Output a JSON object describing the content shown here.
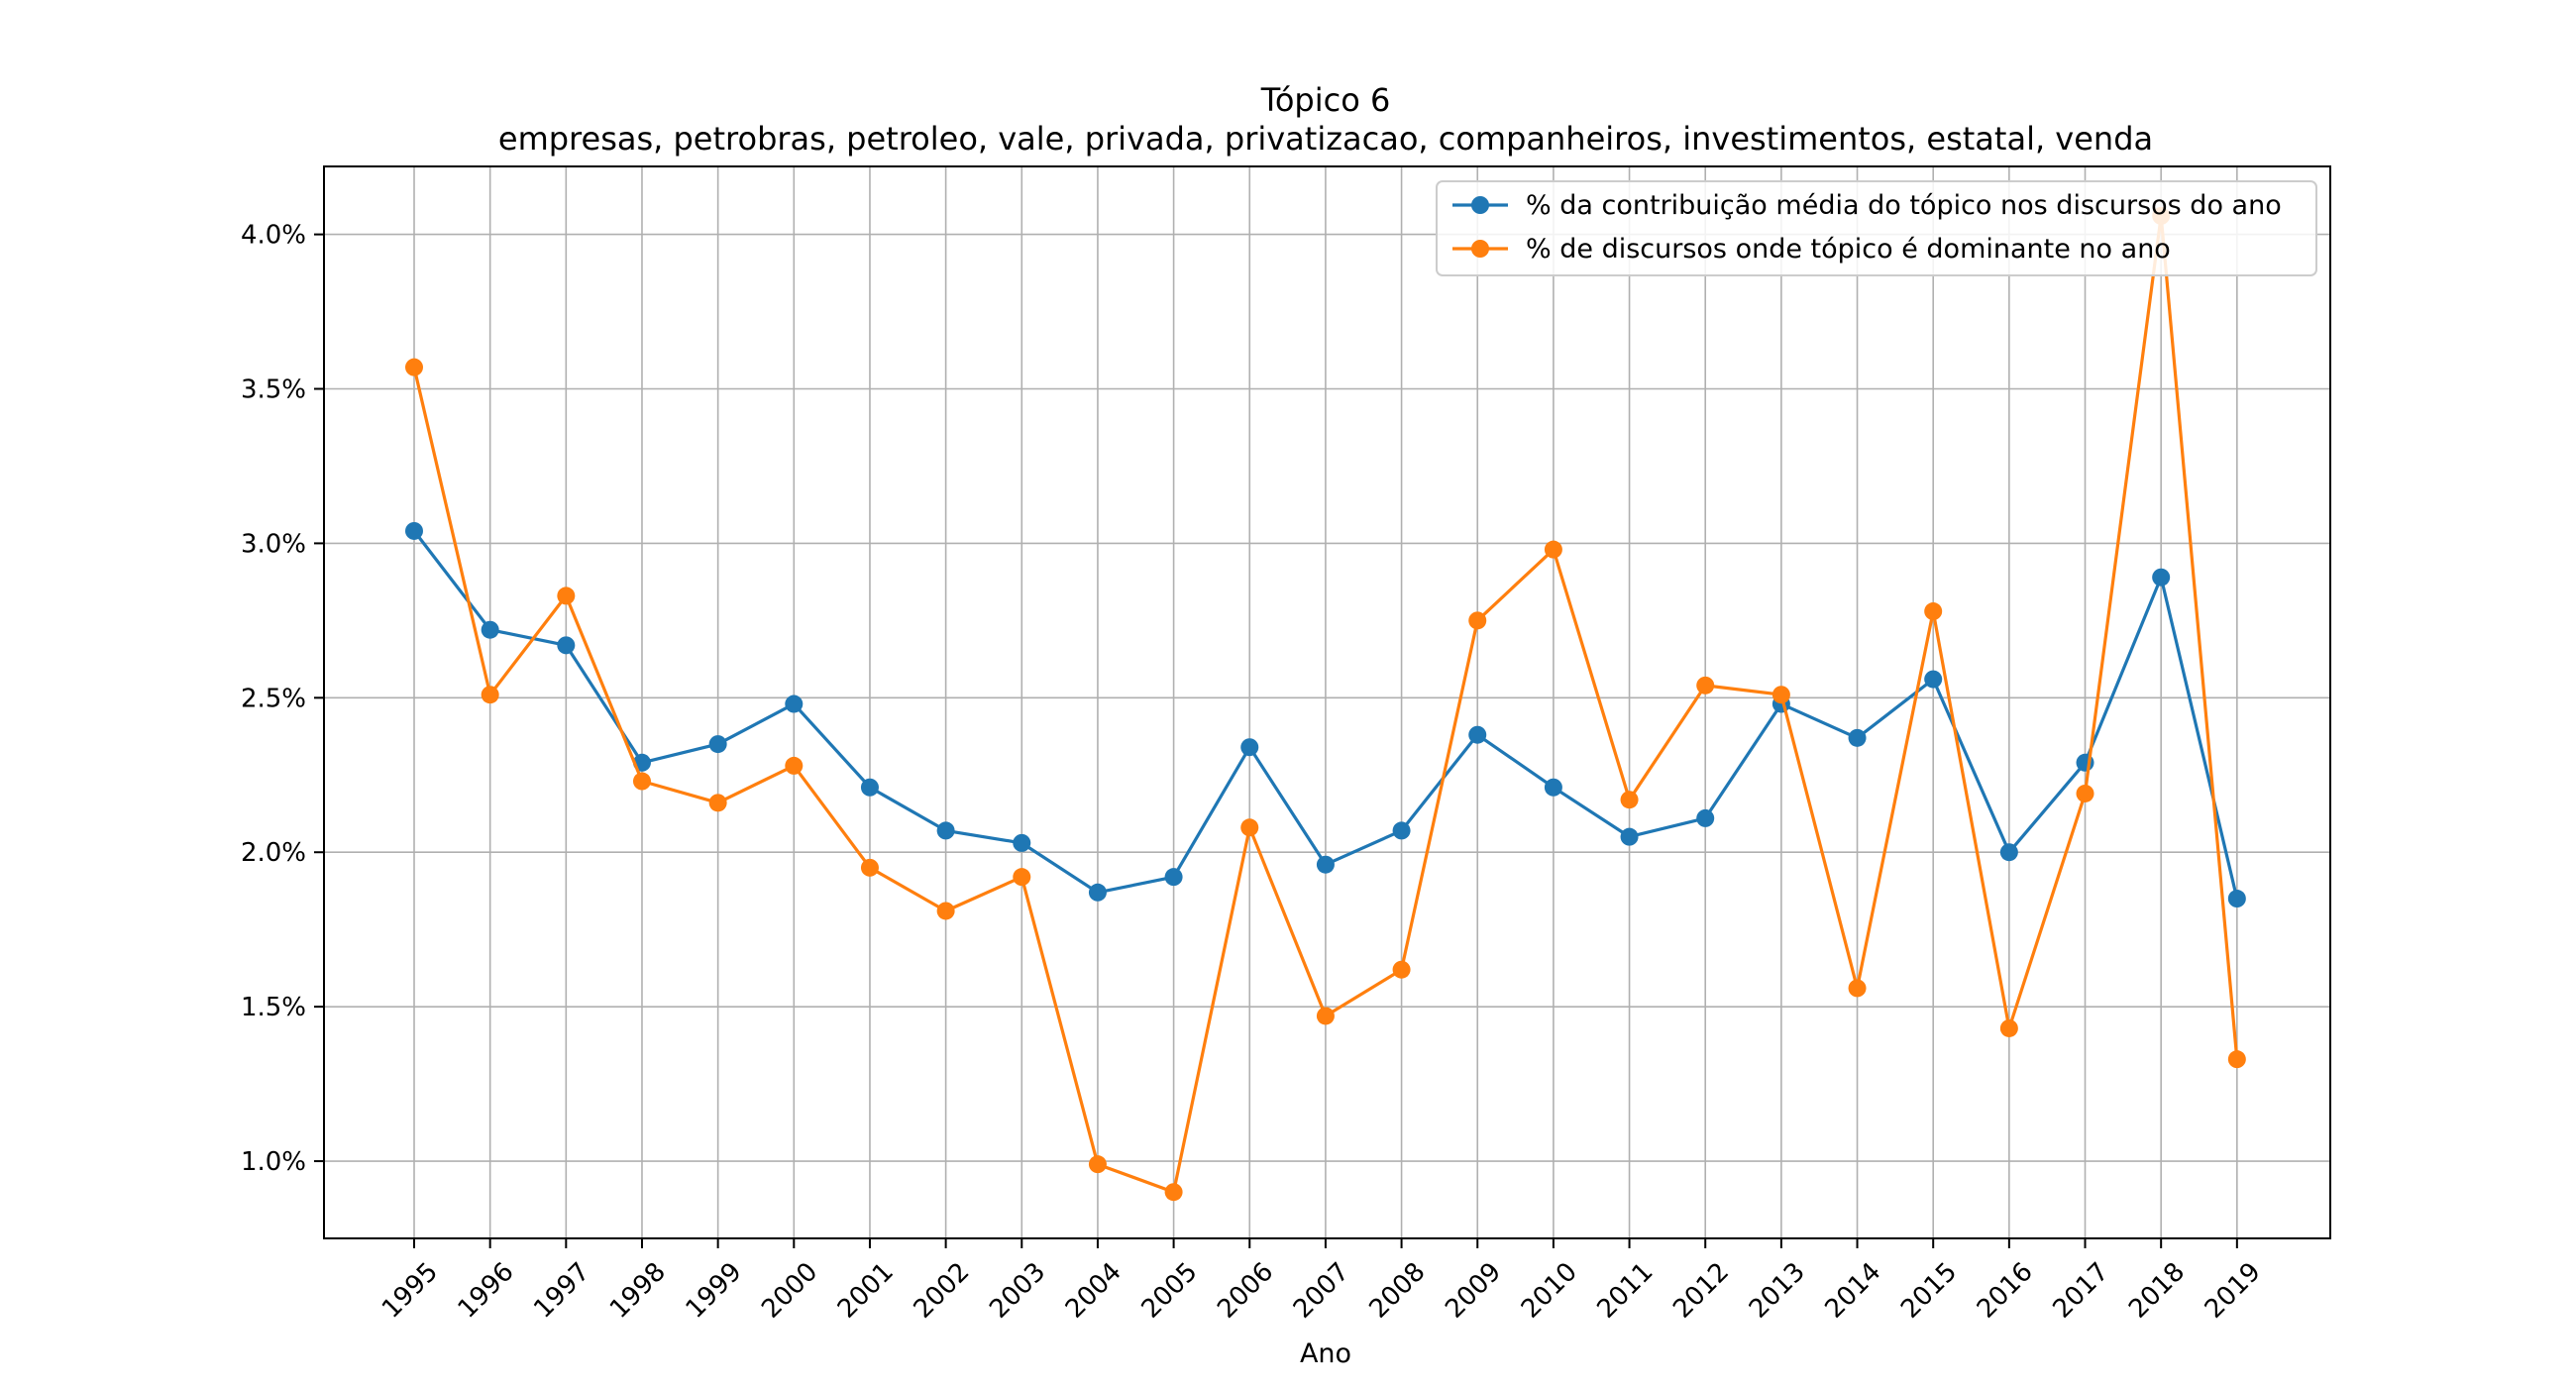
{
  "chart_data": {
    "type": "line",
    "title": "Tópico 6",
    "subtitle": "empresas, petrobras, petroleo, vale, privada, privatizacao, companheiros, investimentos, estatal, venda",
    "xlabel": "Ano",
    "ylabel": "",
    "ylim": [
      0.75,
      4.22
    ],
    "yticks": [
      1.0,
      1.5,
      2.0,
      2.5,
      3.0,
      3.5,
      4.0
    ],
    "ytick_labels": [
      "1.0%",
      "1.5%",
      "2.0%",
      "2.5%",
      "3.0%",
      "3.5%",
      "4.0%"
    ],
    "grid": true,
    "legend_position": "top-right",
    "x": [
      "1995",
      "1996",
      "1997",
      "1998",
      "1999",
      "2000",
      "2001",
      "2002",
      "2003",
      "2004",
      "2005",
      "2006",
      "2007",
      "2008",
      "2009",
      "2010",
      "2011",
      "2012",
      "2013",
      "2014",
      "2015",
      "2016",
      "2017",
      "2018",
      "2019"
    ],
    "series": [
      {
        "name": "% da contribuição média do tópico nos discursos do ano",
        "color": "#1f77b4",
        "values": [
          3.04,
          2.72,
          2.67,
          2.29,
          2.35,
          2.48,
          2.21,
          2.07,
          2.03,
          1.87,
          1.92,
          2.34,
          1.96,
          2.07,
          2.38,
          2.21,
          2.05,
          2.11,
          2.48,
          2.37,
          2.56,
          2.0,
          2.29,
          2.89,
          1.85
        ]
      },
      {
        "name": "% de discursos onde tópico é dominante no ano",
        "color": "#ff7f0e",
        "values": [
          3.57,
          2.51,
          2.83,
          2.23,
          2.16,
          2.28,
          1.95,
          1.81,
          1.92,
          0.99,
          0.9,
          2.08,
          1.47,
          1.62,
          2.75,
          2.98,
          2.17,
          2.54,
          2.51,
          1.56,
          2.78,
          1.43,
          2.19,
          4.06,
          1.33
        ]
      }
    ]
  }
}
